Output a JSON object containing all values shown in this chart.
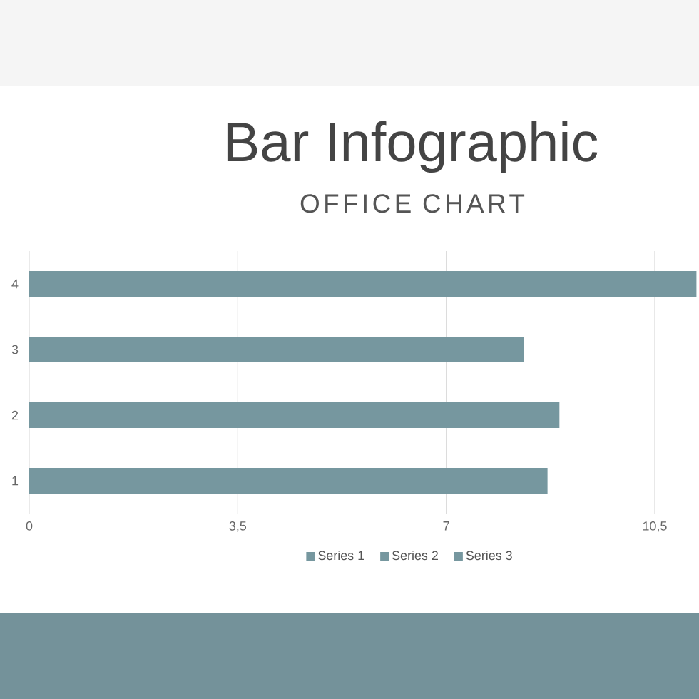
{
  "chart_data": {
    "type": "bar",
    "orientation": "horizontal",
    "title": "Bar Infographic",
    "subtitle": "OFFICE CHART",
    "categories": [
      "4",
      "3",
      "2",
      "1"
    ],
    "series": [
      {
        "name": "Series 1",
        "color": "#76979f",
        "values": [
          11.2,
          8.3,
          8.9,
          8.7
        ]
      },
      {
        "name": "Series 2",
        "color": "#76979f",
        "values": [
          null,
          null,
          null,
          null
        ]
      },
      {
        "name": "Series 3",
        "color": "#76979f",
        "values": [
          null,
          null,
          null,
          null
        ]
      }
    ],
    "xlim": [
      0,
      11.2
    ],
    "xticks": [
      0,
      {
        "value": 3.5,
        "label": "3,5"
      },
      7,
      {
        "value": 10.5,
        "label": "10,5"
      }
    ],
    "grid": "x",
    "legend": "bottom"
  }
}
